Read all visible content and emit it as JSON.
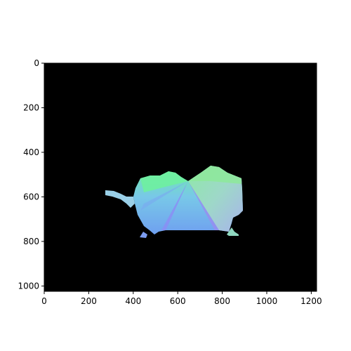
{
  "image": {
    "kind": "surface-normal map rendered with matplotlib imshow",
    "subject": "normal-map-silhouette",
    "background_color": "#000000",
    "x_ticks": [
      "0",
      "200",
      "400",
      "600",
      "800",
      "1000",
      "1200"
    ],
    "y_ticks": [
      "0",
      "200",
      "400",
      "600",
      "800",
      "1000"
    ],
    "x_tick_values": [
      0,
      200,
      400,
      600,
      800,
      1000,
      1200
    ],
    "y_tick_values": [
      0,
      200,
      400,
      600,
      800,
      1000
    ],
    "x_range": [
      0,
      1224
    ],
    "y_range": [
      0,
      1024
    ],
    "palette": {
      "green": "#6ff0a0",
      "mint": "#7ee6b8",
      "cyan": "#78c8e8",
      "blue": "#6fa0f0",
      "violet": "#8c8cf5",
      "lavender": "#a8b4ec",
      "sea": "#9ed8c8"
    }
  }
}
